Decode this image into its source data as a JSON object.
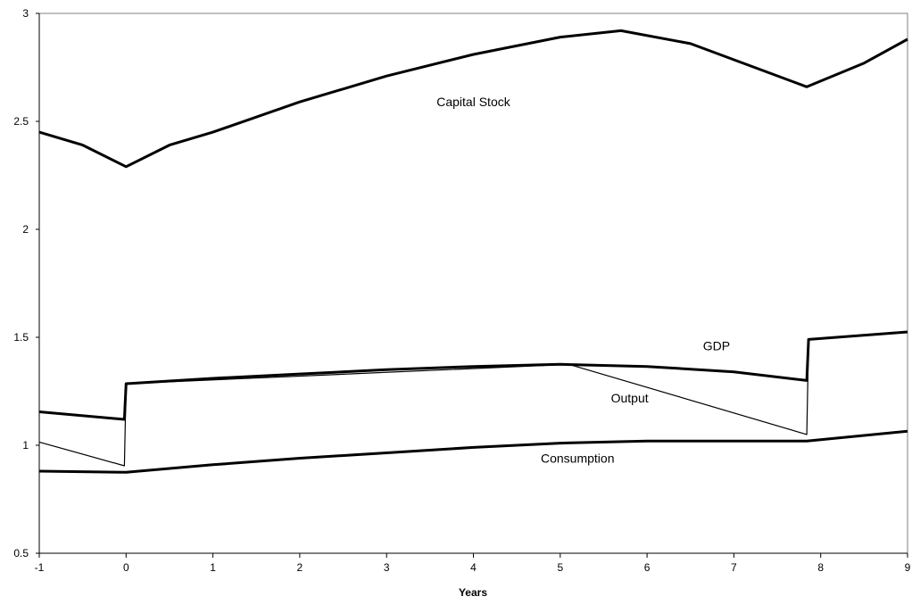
{
  "chart_data": {
    "type": "line",
    "title": "",
    "xlabel": "Years",
    "ylabel": "",
    "xlim": [
      -1,
      9
    ],
    "ylim": [
      0.5,
      3
    ],
    "xticks": [
      -1,
      0,
      1,
      2,
      3,
      4,
      5,
      6,
      7,
      8,
      9
    ],
    "yticks": [
      0.5,
      1,
      1.5,
      2,
      2.5,
      3
    ],
    "ytick_labels": [
      "0.5",
      "1",
      "1.5",
      "2",
      "2.5",
      "3"
    ],
    "grid": false,
    "legend": "none",
    "series": [
      {
        "name": "Capital Stock",
        "line": "thick",
        "x": [
          -1,
          -0.5,
          0,
          0.5,
          1,
          2,
          3,
          4,
          5,
          5.7,
          6.5,
          7.84,
          8.5,
          9
        ],
        "y": [
          2.45,
          2.39,
          2.29,
          2.39,
          2.45,
          2.59,
          2.71,
          2.81,
          2.89,
          2.92,
          2.86,
          2.66,
          2.77,
          2.88
        ]
      },
      {
        "name": "GDP",
        "line": "thick",
        "x": [
          -1,
          -0.02,
          0,
          1,
          2,
          3,
          4,
          5,
          6,
          7,
          7.84,
          7.86,
          9
        ],
        "y": [
          1.155,
          1.12,
          1.285,
          1.31,
          1.33,
          1.35,
          1.365,
          1.375,
          1.365,
          1.34,
          1.3,
          1.49,
          1.525
        ]
      },
      {
        "name": "Output",
        "line": "thin",
        "x": [
          -1,
          -0.02,
          0,
          5.1,
          7.84,
          7.86
        ],
        "y": [
          1.015,
          0.905,
          1.285,
          1.375,
          1.05,
          1.49
        ]
      },
      {
        "name": "Consumption",
        "line": "thick",
        "x": [
          -1,
          0,
          1,
          2,
          3,
          4,
          5,
          6,
          7,
          7.84,
          9
        ],
        "y": [
          0.88,
          0.875,
          0.91,
          0.94,
          0.965,
          0.99,
          1.01,
          1.02,
          1.02,
          1.02,
          1.065
        ]
      }
    ],
    "annotations": [
      {
        "text": "Capital Stock",
        "x": 4.0,
        "y": 2.59
      },
      {
        "text": "GDP",
        "x": 6.8,
        "y": 1.46
      },
      {
        "text": "Output",
        "x": 5.8,
        "y": 1.22
      },
      {
        "text": "Consumption",
        "x": 5.2,
        "y": 0.94
      }
    ]
  }
}
